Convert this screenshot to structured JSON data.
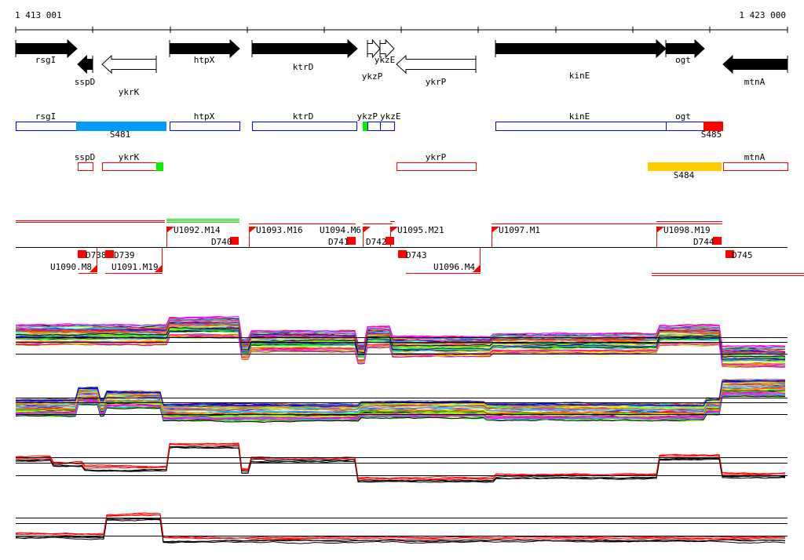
{
  "axis": {
    "start_label": "1 413 001",
    "end_label": "1 423 000"
  },
  "genes": [
    {
      "name": "rsgI",
      "strand": "+",
      "fill": "black"
    },
    {
      "name": "sspD",
      "strand": "-",
      "fill": "black"
    },
    {
      "name": "ykrK",
      "strand": "-",
      "fill": "white"
    },
    {
      "name": "htpX",
      "strand": "+",
      "fill": "black"
    },
    {
      "name": "ktrD",
      "strand": "+",
      "fill": "black"
    },
    {
      "name": "ykzP",
      "strand": "+",
      "fill": "white"
    },
    {
      "name": "ykzE",
      "strand": "+",
      "fill": "white"
    },
    {
      "name": "ykrP",
      "strand": "-",
      "fill": "white"
    },
    {
      "name": "kinE",
      "strand": "+",
      "fill": "black"
    },
    {
      "name": "ogt",
      "strand": "+",
      "fill": "black"
    },
    {
      "name": "mtnA",
      "strand": "-",
      "fill": "black"
    }
  ],
  "plus_annotations": {
    "labels": [
      "rsgI",
      "htpX",
      "ktrD",
      "ykzP",
      "ykzE",
      "kinE",
      "ogt"
    ],
    "segments": [
      "S481",
      "S485"
    ]
  },
  "minus_annotations": {
    "labels": [
      "sspD",
      "ykrK",
      "ykrP",
      "mtnA"
    ],
    "segments": [
      "S484"
    ]
  },
  "features": {
    "upshifts_above": [
      "U1092.M14",
      "U1093.M16",
      "U1094.M6",
      "U1095.M21",
      "U1097.M1",
      "U1098.M19"
    ],
    "downshifts_above": [
      "D740",
      "D741",
      "D742",
      "D744"
    ],
    "upshifts_below": [
      "U1090.M8",
      "U1091.M19",
      "U1096.M4"
    ],
    "downshifts_below": [
      "D738",
      "D739",
      "D743",
      "D745"
    ]
  },
  "colors": {
    "plus_box": "#0000ff",
    "minus_box": "#ff0000",
    "segment_s481": "#0099ff",
    "segment_s485": "#ff0000",
    "segment_s484": "#ffcc00",
    "green_mark": "#00ee00",
    "feature": "#ff0000",
    "palette": [
      "#ff0000",
      "#00ff00",
      "#0000ff",
      "#ff00ff",
      "#00ffff",
      "#ffcc00",
      "#ff8800",
      "#888888",
      "#000000",
      "#99ff00",
      "#cc00cc",
      "#3399ff",
      "#ffff00",
      "#996633"
    ]
  }
}
